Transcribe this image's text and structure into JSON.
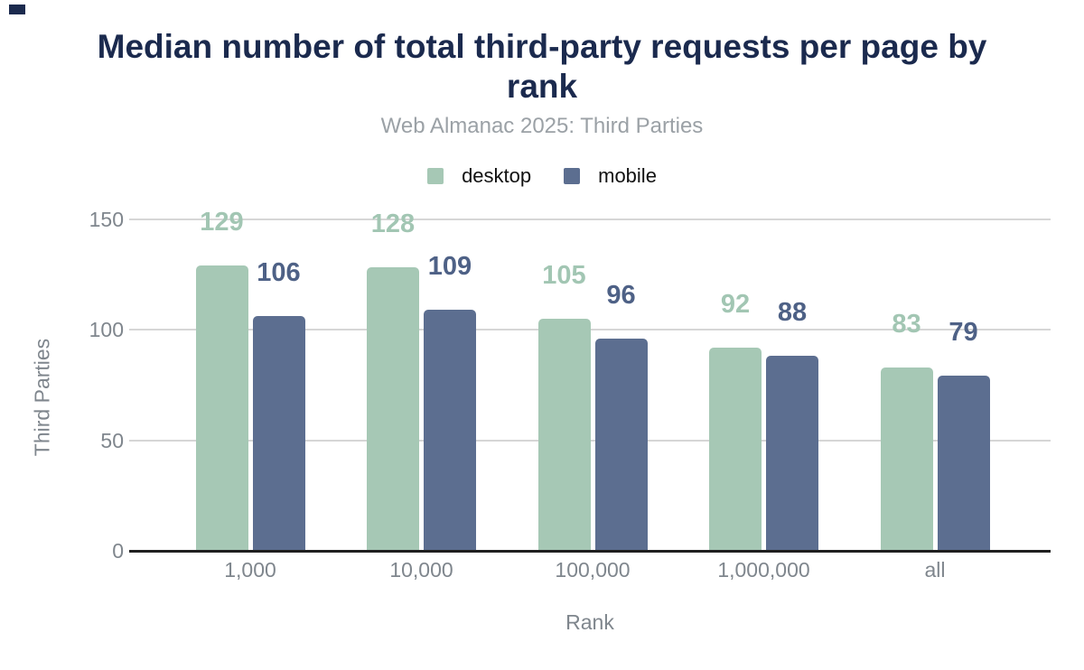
{
  "chart_data": {
    "type": "bar",
    "title": "Median number of total third-party requests per page by rank",
    "subtitle": "Web Almanac 2025: Third Parties",
    "categories": [
      "1,000",
      "10,000",
      "100,000",
      "1,000,000",
      "all"
    ],
    "series": [
      {
        "name": "desktop",
        "values": [
          129,
          128,
          105,
          92,
          83
        ],
        "color": "#a6c8b5",
        "label_color": "#a2c6b3"
      },
      {
        "name": "mobile",
        "values": [
          106,
          109,
          96,
          88,
          79
        ],
        "color": "#5c6e90",
        "label_color": "#4e6186"
      }
    ],
    "xlabel": "Rank",
    "ylabel": "Third Parties",
    "ylim": [
      0,
      150
    ],
    "yticks": [
      0,
      50,
      100,
      150
    ],
    "grid": true,
    "legend_position": "top",
    "data_labels": true
  },
  "colors": {
    "title": "#1b2a4e",
    "subtitle": "#9ba1a6",
    "legend_text": "#111111",
    "axis_text": "#7f868d",
    "gridline": "#d6d6d6",
    "baseline": "#1f1f1f",
    "background": "#ffffff",
    "corner_mark": "#1b2a4e"
  }
}
